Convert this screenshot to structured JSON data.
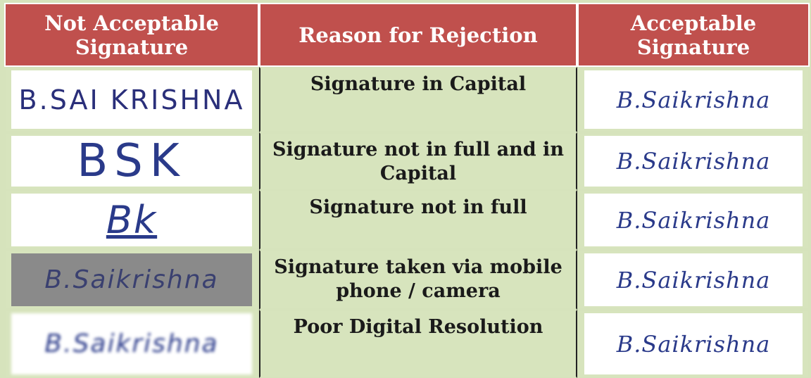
{
  "table": {
    "header": [
      "Not Acceptable Signature",
      "Reason for Rejection",
      "Acceptable Signature"
    ],
    "rows": [
      [
        "B.SAI KRISHNA",
        "Signature in Capital",
        "B.Saikrishna"
      ],
      [
        "BSK",
        "Signature not in full and in Capital",
        "B.Saikrishna"
      ],
      [
        "Bk",
        "Signature not in full",
        "B.Saikrishna"
      ],
      [
        "B.Saikrishna",
        "Signature taken via mobile phone / camera",
        "B.Saikrishna"
      ],
      [
        "B.Saikrishna",
        "Poor Digital Resolution",
        "B.Saikrishna"
      ]
    ]
  }
}
